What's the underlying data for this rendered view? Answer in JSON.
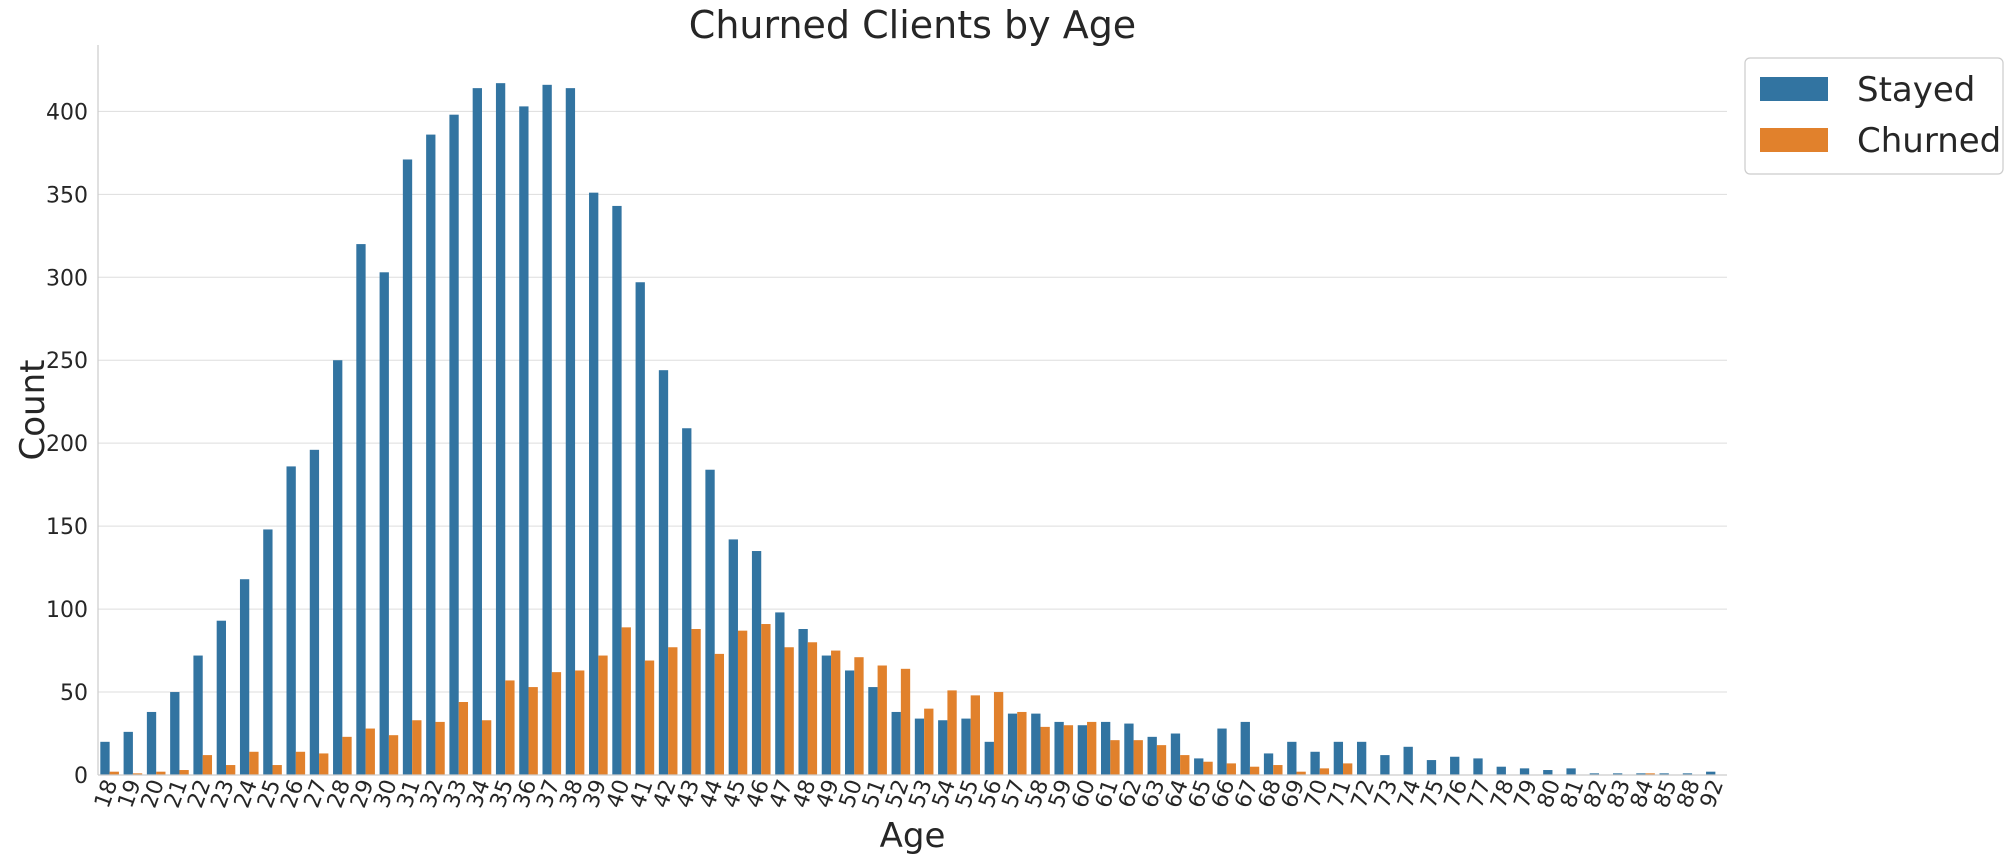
{
  "chart_data": {
    "type": "bar",
    "title": "Churned Clients by Age",
    "xlabel": "Age",
    "ylabel": "Count",
    "ylim": [
      0,
      440
    ],
    "yticks": [
      0,
      50,
      100,
      150,
      200,
      250,
      300,
      350,
      400
    ],
    "grid": "horizontal",
    "legend_position": "outside-top-right",
    "categories": [
      "18",
      "19",
      "20",
      "21",
      "22",
      "23",
      "24",
      "25",
      "26",
      "27",
      "28",
      "29",
      "30",
      "31",
      "32",
      "33",
      "34",
      "35",
      "36",
      "37",
      "38",
      "39",
      "40",
      "41",
      "42",
      "43",
      "44",
      "45",
      "46",
      "47",
      "48",
      "49",
      "50",
      "51",
      "52",
      "53",
      "54",
      "55",
      "56",
      "57",
      "58",
      "59",
      "60",
      "61",
      "62",
      "63",
      "64",
      "65",
      "66",
      "67",
      "68",
      "69",
      "70",
      "71",
      "72",
      "73",
      "74",
      "75",
      "76",
      "77",
      "78",
      "79",
      "80",
      "81",
      "82",
      "83",
      "84",
      "85",
      "88",
      "92"
    ],
    "series": [
      {
        "name": "Stayed",
        "color": "#3274a1",
        "values": [
          20,
          26,
          38,
          50,
          72,
          93,
          118,
          148,
          186,
          196,
          250,
          320,
          303,
          371,
          386,
          398,
          414,
          417,
          403,
          416,
          414,
          351,
          343,
          297,
          244,
          209,
          184,
          142,
          135,
          98,
          88,
          72,
          63,
          53,
          38,
          34,
          33,
          34,
          20,
          37,
          37,
          32,
          30,
          32,
          31,
          23,
          25,
          10,
          28,
          32,
          13,
          20,
          14,
          20,
          20,
          12,
          17,
          9,
          11,
          10,
          5,
          4,
          3,
          4,
          1,
          1,
          1,
          1,
          1,
          2
        ]
      },
      {
        "name": "Churned",
        "color": "#e1812c",
        "values": [
          2,
          1,
          2,
          3,
          12,
          6,
          14,
          6,
          14,
          13,
          23,
          28,
          24,
          33,
          32,
          44,
          33,
          57,
          53,
          62,
          63,
          72,
          89,
          69,
          77,
          88,
          73,
          87,
          91,
          77,
          80,
          75,
          71,
          66,
          64,
          40,
          51,
          48,
          50,
          38,
          29,
          30,
          32,
          21,
          21,
          18,
          12,
          8,
          7,
          5,
          6,
          2,
          4,
          7,
          0,
          0,
          0,
          0,
          0,
          0,
          0,
          0,
          0,
          0,
          0,
          0,
          1,
          0,
          0,
          0
        ]
      }
    ]
  }
}
